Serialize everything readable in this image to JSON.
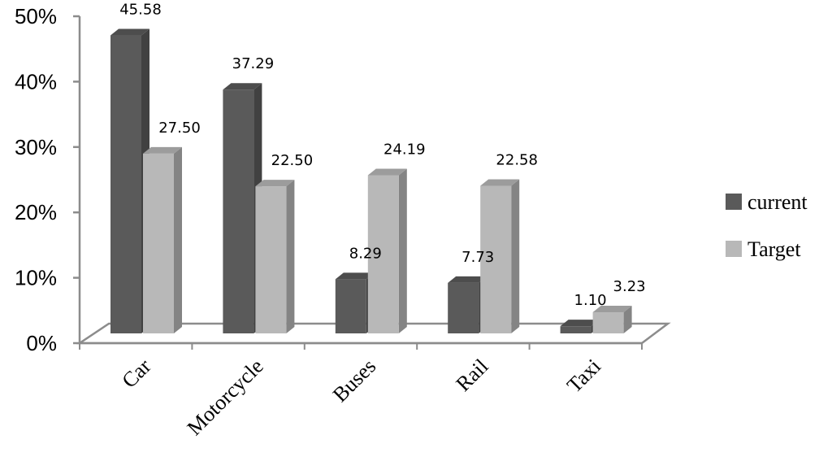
{
  "chart_data": {
    "type": "bar",
    "categories": [
      "Car",
      "Motorcycle",
      "Buses",
      "Rail",
      "Taxi"
    ],
    "series": [
      {
        "name": "current",
        "values": [
          45.58,
          37.29,
          8.29,
          7.73,
          1.1
        ],
        "labels": [
          "45.58",
          "37.29",
          "8.29",
          "7.73",
          "1.10"
        ],
        "color": "#5a5a5a"
      },
      {
        "name": "Target",
        "values": [
          27.5,
          22.5,
          24.19,
          22.58,
          3.23
        ],
        "labels": [
          "27.50",
          "22.50",
          "24.19",
          "22.58",
          "3.23"
        ],
        "color": "#b8b8b8"
      }
    ],
    "yticks": [
      "0%",
      "10%",
      "20%",
      "30%",
      "40%",
      "50%"
    ],
    "ylim": [
      0,
      50
    ],
    "three_d": true,
    "grid": false,
    "legend_position": "right"
  }
}
